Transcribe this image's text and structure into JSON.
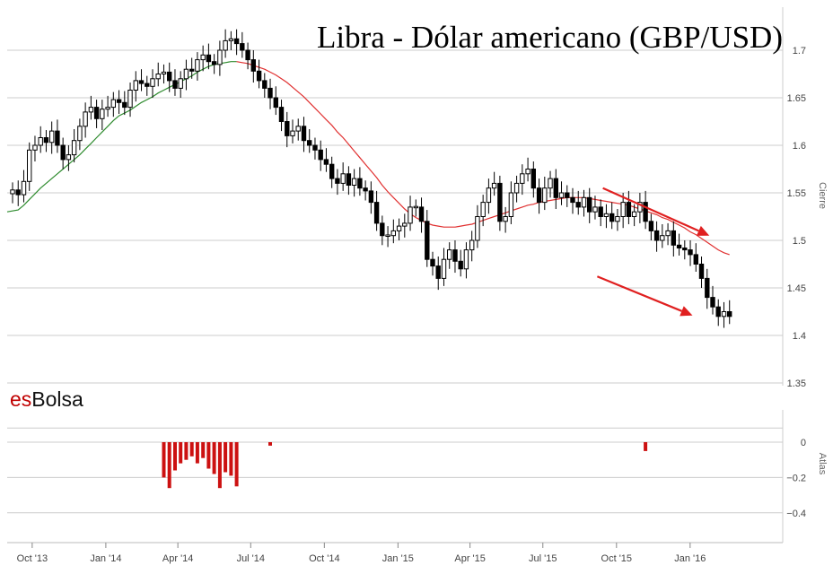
{
  "title": "Libra - Dólar americano (GBP/USD)",
  "brand": {
    "prefix": "es",
    "suffix": "Bolsa"
  },
  "colors": {
    "candle": "#000000",
    "ma_up": "#2e8b2e",
    "ma_down": "#e03030",
    "atlas_bar": "#cc1111",
    "arrows": "#e02020",
    "grid": "#cccccc"
  },
  "chart_data": [
    {
      "type": "candlestick",
      "frequency": "weekly",
      "ylabel": "Cierre",
      "ylim": [
        1.35,
        1.72
      ],
      "yticks": [
        "1.35",
        "1.4",
        "1.45",
        "1.5",
        "1.55",
        "1.6",
        "1.65",
        "1.7"
      ],
      "xticks": [
        {
          "date": "2013-10-01",
          "label": "Oct '13"
        },
        {
          "date": "2014-01-01",
          "label": "Jan '14"
        },
        {
          "date": "2014-04-01",
          "label": "Apr '14"
        },
        {
          "date": "2014-07-01",
          "label": "Jul '14"
        },
        {
          "date": "2014-10-01",
          "label": "Oct '14"
        },
        {
          "date": "2015-01-01",
          "label": "Jan '15"
        },
        {
          "date": "2015-04-01",
          "label": "Apr '15"
        },
        {
          "date": "2015-07-01",
          "label": "Jul '15"
        },
        {
          "date": "2015-10-01",
          "label": "Oct '15"
        },
        {
          "date": "2016-01-01",
          "label": "Jan '16"
        }
      ],
      "close": [
        1.553,
        1.548,
        1.562,
        1.595,
        1.6,
        1.608,
        1.603,
        1.615,
        1.6,
        1.585,
        1.59,
        1.605,
        1.62,
        1.635,
        1.64,
        1.628,
        1.638,
        1.64,
        1.648,
        1.645,
        1.64,
        1.658,
        1.668,
        1.665,
        1.662,
        1.67,
        1.675,
        1.677,
        1.668,
        1.66,
        1.67,
        1.68,
        1.678,
        1.69,
        1.695,
        1.688,
        1.685,
        1.7,
        1.71,
        1.712,
        1.707,
        1.7,
        1.69,
        1.678,
        1.668,
        1.66,
        1.65,
        1.64,
        1.625,
        1.61,
        1.615,
        1.62,
        1.605,
        1.6,
        1.595,
        1.585,
        1.58,
        1.565,
        1.56,
        1.57,
        1.558,
        1.565,
        1.555,
        1.552,
        1.54,
        1.518,
        1.505,
        1.505,
        1.51,
        1.515,
        1.518,
        1.535,
        1.535,
        1.52,
        1.48,
        1.473,
        1.46,
        1.48,
        1.49,
        1.478,
        1.47,
        1.49,
        1.5,
        1.525,
        1.54,
        1.555,
        1.56,
        1.52,
        1.525,
        1.55,
        1.56,
        1.57,
        1.575,
        1.555,
        1.54,
        1.555,
        1.565,
        1.545,
        1.55,
        1.545,
        1.54,
        1.535,
        1.545,
        1.53,
        1.535,
        1.525,
        1.528,
        1.52,
        1.525,
        1.54,
        1.525,
        1.53,
        1.54,
        1.52,
        1.51,
        1.5,
        1.505,
        1.51,
        1.495,
        1.492,
        1.49,
        1.485,
        1.475,
        1.46,
        1.44,
        1.43,
        1.42,
        1.425,
        1.42
      ],
      "ma": [
        1.53,
        1.532,
        1.537,
        1.543,
        1.549,
        1.555,
        1.56,
        1.565,
        1.57,
        1.575,
        1.58,
        1.585,
        1.59,
        1.596,
        1.602,
        1.608,
        1.614,
        1.62,
        1.626,
        1.631,
        1.634,
        1.637,
        1.641,
        1.645,
        1.648,
        1.651,
        1.655,
        1.658,
        1.661,
        1.664,
        1.667,
        1.67,
        1.673,
        1.677,
        1.68,
        1.683,
        1.685,
        1.686,
        1.687,
        1.688,
        1.688,
        1.687,
        1.686,
        1.684,
        1.682,
        1.68,
        1.677,
        1.674,
        1.67,
        1.666,
        1.661,
        1.656,
        1.651,
        1.645,
        1.639,
        1.633,
        1.627,
        1.621,
        1.614,
        1.608,
        1.601,
        1.594,
        1.587,
        1.58,
        1.573,
        1.566,
        1.558,
        1.551,
        1.545,
        1.539,
        1.533,
        1.528,
        1.524,
        1.521,
        1.518,
        1.516,
        1.515,
        1.514,
        1.514,
        1.514,
        1.515,
        1.516,
        1.517,
        1.519,
        1.521,
        1.523,
        1.525,
        1.527,
        1.529,
        1.531,
        1.533,
        1.535,
        1.537,
        1.538,
        1.54,
        1.541,
        1.542,
        1.543,
        1.544,
        1.545,
        1.545,
        1.545,
        1.545,
        1.544,
        1.543,
        1.542,
        1.541,
        1.54,
        1.539,
        1.538,
        1.537,
        1.535,
        1.533,
        1.531,
        1.529,
        1.527,
        1.524,
        1.522,
        1.519,
        1.516,
        1.513,
        1.509,
        1.506,
        1.502,
        1.498,
        1.494,
        1.49,
        1.487,
        1.485
      ],
      "ma_color_switch_index": 40
    },
    {
      "type": "bar",
      "ylabel": "Atlas",
      "ylim": [
        -0.45,
        0.1
      ],
      "yticks": [
        "0",
        "−0.2",
        "−0.4"
      ],
      "bars": [
        {
          "index": 27,
          "value": -0.2
        },
        {
          "index": 28,
          "value": -0.26
        },
        {
          "index": 29,
          "value": -0.16
        },
        {
          "index": 30,
          "value": -0.12
        },
        {
          "index": 31,
          "value": -0.1
        },
        {
          "index": 32,
          "value": -0.08
        },
        {
          "index": 33,
          "value": -0.12
        },
        {
          "index": 34,
          "value": -0.09
        },
        {
          "index": 35,
          "value": -0.15
        },
        {
          "index": 36,
          "value": -0.18
        },
        {
          "index": 37,
          "value": -0.26
        },
        {
          "index": 38,
          "value": -0.17
        },
        {
          "index": 39,
          "value": -0.19
        },
        {
          "index": 40,
          "value": -0.25
        },
        {
          "index": 46,
          "value": -0.02
        },
        {
          "index": 113,
          "value": -0.05
        }
      ]
    }
  ],
  "annotations": [
    {
      "type": "arrow",
      "from": [
        "2015-09-14",
        1.555
      ],
      "to": [
        "2016-01-25",
        1.505
      ]
    },
    {
      "type": "arrow",
      "from": [
        "2015-09-07",
        1.462
      ],
      "to": [
        "2016-01-04",
        1.421
      ]
    }
  ]
}
